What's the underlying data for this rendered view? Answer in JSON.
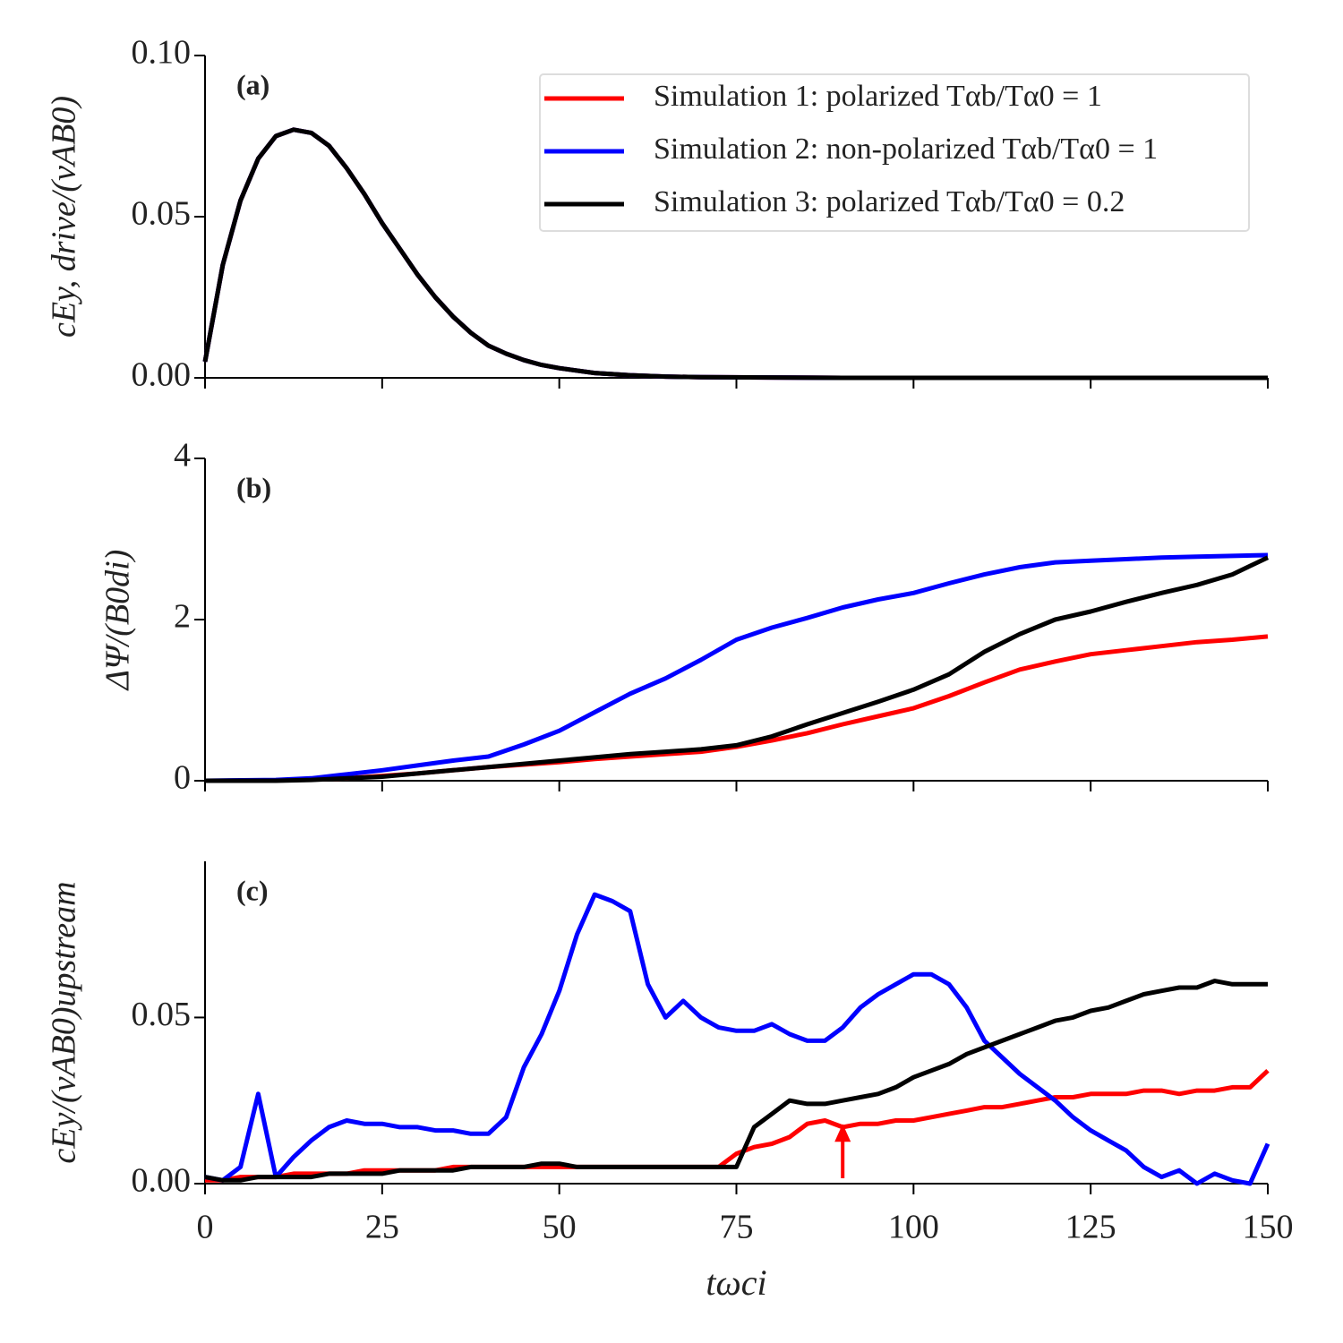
{
  "chart_data": [
    {
      "type": "line",
      "panel_label": "(a)",
      "ylabel": "cEy, drive/(vAB0)",
      "x": [
        0,
        2.5,
        5,
        7.5,
        10,
        12.5,
        15,
        17.5,
        20,
        22.5,
        25,
        27.5,
        30,
        32.5,
        35,
        37.5,
        40,
        42.5,
        45,
        47.5,
        50,
        55,
        60,
        65,
        70,
        80,
        90,
        100,
        110,
        120,
        130,
        140,
        150
      ],
      "series": [
        {
          "name": "Simulation 1: polarized Tαb/Tα0 = 1",
          "color": "#ff0000",
          "values": [
            0.005,
            0.035,
            0.055,
            0.068,
            0.075,
            0.077,
            0.076,
            0.072,
            0.065,
            0.057,
            0.048,
            0.04,
            0.032,
            0.025,
            0.019,
            0.014,
            0.01,
            0.0075,
            0.0055,
            0.004,
            0.003,
            0.0015,
            0.0008,
            0.0004,
            0.0002,
            0.0001,
            0,
            0,
            0,
            0,
            0,
            0,
            0
          ]
        },
        {
          "name": "Simulation 2: non-polarized Tαb/Tα0 = 1",
          "color": "#0000ff",
          "values": [
            0.005,
            0.035,
            0.055,
            0.068,
            0.075,
            0.077,
            0.076,
            0.072,
            0.065,
            0.057,
            0.048,
            0.04,
            0.032,
            0.025,
            0.019,
            0.014,
            0.01,
            0.0075,
            0.0055,
            0.004,
            0.003,
            0.0015,
            0.0008,
            0.0004,
            0.0002,
            0.0001,
            0,
            0,
            0,
            0,
            0,
            0,
            0
          ]
        },
        {
          "name": "Simulation 3: polarized Tαb/Tα0 = 0.2",
          "color": "#000000",
          "values": [
            0.005,
            0.035,
            0.055,
            0.068,
            0.075,
            0.077,
            0.076,
            0.072,
            0.065,
            0.057,
            0.048,
            0.04,
            0.032,
            0.025,
            0.019,
            0.014,
            0.01,
            0.0075,
            0.0055,
            0.004,
            0.003,
            0.0015,
            0.0008,
            0.0004,
            0.0002,
            0.0001,
            0,
            0,
            0,
            0,
            0,
            0,
            0
          ]
        }
      ],
      "xlim": [
        0,
        150
      ],
      "xticks": [
        0,
        25,
        50,
        75,
        100,
        125,
        150
      ],
      "show_xtick_labels": false,
      "ylim": [
        0,
        0.1
      ],
      "yticks": [
        {
          "value": 0,
          "label": "0.00"
        },
        {
          "value": 0.05,
          "label": "0.05"
        },
        {
          "value": 0.1,
          "label": "0.10"
        }
      ],
      "legend": "upper right"
    },
    {
      "type": "line",
      "panel_label": "(b)",
      "ylabel": "ΔΨ/(B0di)",
      "x": [
        0,
        5,
        10,
        15,
        20,
        25,
        30,
        35,
        40,
        45,
        50,
        55,
        60,
        65,
        70,
        75,
        80,
        85,
        90,
        95,
        100,
        105,
        110,
        115,
        120,
        125,
        130,
        135,
        140,
        145,
        150
      ],
      "series": [
        {
          "color": "#ff0000",
          "values": [
            0,
            0,
            0.005,
            0.015,
            0.03,
            0.06,
            0.09,
            0.13,
            0.17,
            0.2,
            0.23,
            0.27,
            0.3,
            0.33,
            0.36,
            0.42,
            0.5,
            0.59,
            0.7,
            0.8,
            0.9,
            1.05,
            1.22,
            1.38,
            1.48,
            1.57,
            1.62,
            1.67,
            1.72,
            1.75,
            1.79
          ]
        },
        {
          "color": "#0000ff",
          "values": [
            0,
            0.005,
            0.01,
            0.03,
            0.08,
            0.13,
            0.19,
            0.25,
            0.3,
            0.45,
            0.62,
            0.85,
            1.08,
            1.27,
            1.5,
            1.75,
            1.9,
            2.02,
            2.15,
            2.25,
            2.33,
            2.45,
            2.56,
            2.65,
            2.71,
            2.73,
            2.75,
            2.77,
            2.78,
            2.79,
            2.8
          ]
        },
        {
          "color": "#000000",
          "values": [
            0,
            0,
            0,
            0.01,
            0.03,
            0.05,
            0.09,
            0.13,
            0.17,
            0.21,
            0.25,
            0.29,
            0.33,
            0.36,
            0.39,
            0.44,
            0.55,
            0.7,
            0.84,
            0.98,
            1.13,
            1.32,
            1.6,
            1.82,
            2.0,
            2.1,
            2.22,
            2.33,
            2.43,
            2.56,
            2.77
          ]
        }
      ],
      "xlim": [
        0,
        150
      ],
      "xticks": [
        0,
        25,
        50,
        75,
        100,
        125,
        150
      ],
      "show_xtick_labels": false,
      "ylim": [
        0,
        4
      ],
      "yticks": [
        0,
        2,
        4
      ]
    },
    {
      "type": "line",
      "panel_label": "(c)",
      "ylabel": "cEy/(vAB0)upstream",
      "xlabel": "tωci",
      "x": [
        0,
        2.5,
        5,
        7.5,
        10,
        12.5,
        15,
        17.5,
        20,
        22.5,
        25,
        27.5,
        30,
        32.5,
        35,
        37.5,
        40,
        42.5,
        45,
        47.5,
        50,
        52.5,
        55,
        57.5,
        60,
        62.5,
        65,
        67.5,
        70,
        72.5,
        75,
        77.5,
        80,
        82.5,
        85,
        87.5,
        90,
        92.5,
        95,
        97.5,
        100,
        102.5,
        105,
        107.5,
        110,
        112.5,
        115,
        117.5,
        120,
        122.5,
        125,
        127.5,
        130,
        132.5,
        135,
        137.5,
        140,
        142.5,
        145,
        147.5,
        150
      ],
      "series": [
        {
          "color": "#ff0000",
          "values": [
            0.001,
            0.001,
            0.002,
            0.002,
            0.002,
            0.003,
            0.003,
            0.003,
            0.003,
            0.004,
            0.004,
            0.004,
            0.004,
            0.004,
            0.005,
            0.005,
            0.005,
            0.005,
            0.005,
            0.005,
            0.005,
            0.005,
            0.005,
            0.005,
            0.005,
            0.005,
            0.005,
            0.005,
            0.005,
            0.005,
            0.009,
            0.011,
            0.012,
            0.014,
            0.018,
            0.019,
            0.017,
            0.018,
            0.018,
            0.019,
            0.019,
            0.02,
            0.021,
            0.022,
            0.023,
            0.023,
            0.024,
            0.025,
            0.026,
            0.026,
            0.027,
            0.027,
            0.027,
            0.028,
            0.028,
            0.027,
            0.028,
            0.028,
            0.029,
            0.029,
            0.034
          ]
        },
        {
          "color": "#0000ff",
          "values": [
            0.002,
            0.001,
            0.005,
            0.027,
            0.002,
            0.008,
            0.013,
            0.017,
            0.019,
            0.018,
            0.018,
            0.017,
            0.017,
            0.016,
            0.016,
            0.015,
            0.015,
            0.02,
            0.035,
            0.045,
            0.058,
            0.075,
            0.087,
            0.085,
            0.082,
            0.06,
            0.05,
            0.055,
            0.05,
            0.047,
            0.046,
            0.046,
            0.048,
            0.045,
            0.043,
            0.043,
            0.047,
            0.053,
            0.057,
            0.06,
            0.063,
            0.063,
            0.06,
            0.053,
            0.043,
            0.038,
            0.033,
            0.029,
            0.025,
            0.02,
            0.016,
            0.013,
            0.01,
            0.005,
            0.002,
            0.004,
            0,
            0.003,
            0.001,
            0,
            0.012
          ]
        },
        {
          "color": "#000000",
          "values": [
            0.002,
            0.001,
            0.001,
            0.002,
            0.002,
            0.002,
            0.002,
            0.003,
            0.003,
            0.003,
            0.003,
            0.004,
            0.004,
            0.004,
            0.004,
            0.005,
            0.005,
            0.005,
            0.005,
            0.006,
            0.006,
            0.005,
            0.005,
            0.005,
            0.005,
            0.005,
            0.005,
            0.005,
            0.005,
            0.005,
            0.005,
            0.017,
            0.021,
            0.025,
            0.024,
            0.024,
            0.025,
            0.026,
            0.027,
            0.029,
            0.032,
            0.034,
            0.036,
            0.039,
            0.041,
            0.043,
            0.045,
            0.047,
            0.049,
            0.05,
            0.052,
            0.053,
            0.055,
            0.057,
            0.058,
            0.059,
            0.059,
            0.061,
            0.06,
            0.06,
            0.06
          ]
        }
      ],
      "xlim": [
        0,
        150
      ],
      "xticks": [
        0,
        25,
        50,
        75,
        100,
        125,
        150
      ],
      "show_xtick_labels": true,
      "ylim": [
        0,
        0.097
      ],
      "yticks": [
        {
          "value": 0,
          "label": "0.00"
        },
        {
          "value": 0.05,
          "label": "0.05"
        }
      ],
      "arrow": {
        "x": 90,
        "y": 0.018,
        "color": "#ff0000"
      }
    }
  ]
}
